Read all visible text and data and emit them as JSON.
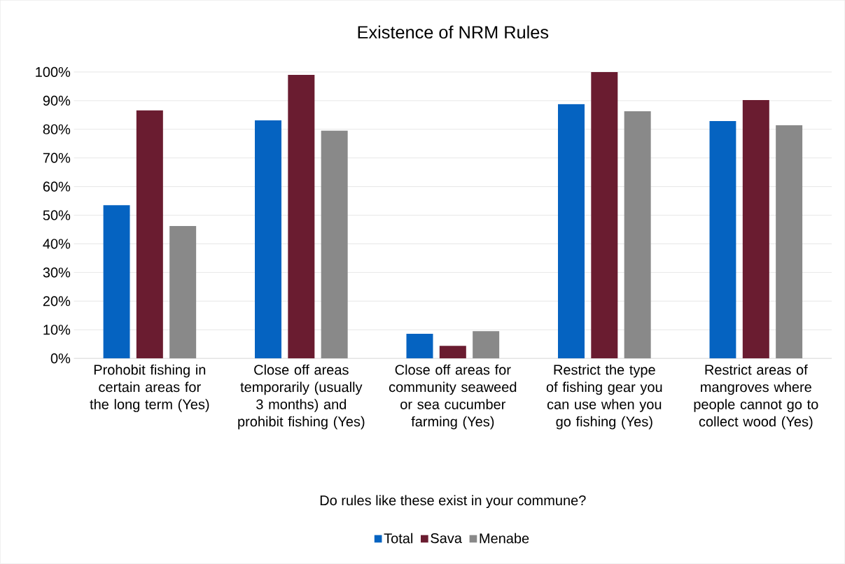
{
  "chart_data": {
    "type": "bar",
    "title": "Existence of NRM Rules",
    "xlabel": "Do rules like these exist in your commune?",
    "categories": [
      "Prohobit fishing in certain areas for the long term (Yes)",
      "Close off areas temporarily (usually 3 months) and prohibit fishing (Yes)",
      "Close off areas for community seaweed or sea cucumber farming (Yes)",
      "Restrict the type of fishing gear you can use when you go fishing (Yes)",
      "Restrict areas of mangroves where people cannot go to collect wood (Yes)"
    ],
    "series": [
      {
        "name": "Total",
        "color": "#0563c1",
        "values": [
          53.5,
          83.1,
          8.6,
          88.8,
          82.9
        ]
      },
      {
        "name": "Sava",
        "color": "#6a1c30",
        "values": [
          86.6,
          99.0,
          4.4,
          100,
          90.2
        ]
      },
      {
        "name": "Menabe",
        "color": "#898989",
        "values": [
          46.2,
          79.5,
          9.5,
          86.3,
          81.4
        ]
      }
    ],
    "ylim": [
      0,
      100
    ],
    "yticks": [
      {
        "value": 0,
        "label": "0%"
      },
      {
        "value": 10,
        "label": "10%"
      },
      {
        "value": 20,
        "label": "20%"
      },
      {
        "value": 30,
        "label": "30%"
      },
      {
        "value": 40,
        "label": "40%"
      },
      {
        "value": 50,
        "label": "50%"
      },
      {
        "value": 60,
        "label": "60%"
      },
      {
        "value": 70,
        "label": "70%"
      },
      {
        "value": 80,
        "label": "80%"
      },
      {
        "value": 90,
        "label": "90%"
      },
      {
        "value": 100,
        "label": "100%"
      }
    ],
    "grid": "y",
    "legend": "bottom"
  }
}
